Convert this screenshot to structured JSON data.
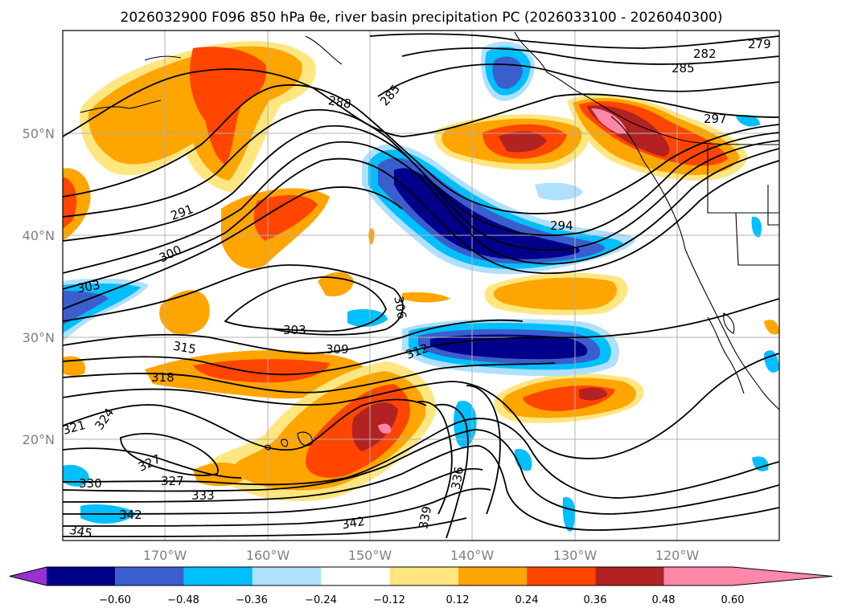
{
  "title": "2026032900 F096 850 hPa θe, river basin precipitation PC (2026033100 - 2026040300)",
  "axes": {
    "lat_labels": [
      "50°N",
      "40°N",
      "30°N",
      "20°N"
    ],
    "lon_labels": [
      "170°W",
      "160°W",
      "150°W",
      "140°W",
      "130°W",
      "120°W"
    ]
  },
  "contour_labels": [
    "279",
    "282",
    "285",
    "285",
    "288",
    "291",
    "294",
    "297",
    "300",
    "303",
    "303",
    "306",
    "309",
    "312",
    "315",
    "318",
    "321",
    "324",
    "327",
    "327",
    "330",
    "333",
    "336",
    "339",
    "342",
    "342",
    "345"
  ],
  "colorbar": {
    "ticks": [
      "−0.60",
      "−0.48",
      "−0.36",
      "−0.24",
      "−0.12",
      "0.12",
      "0.24",
      "0.36",
      "0.48",
      "0.60"
    ],
    "colors": [
      "#9b30d0",
      "#00008b",
      "#3a5fcd",
      "#00bfff",
      "#b0e0ff",
      "#ffffff",
      "#ffe680",
      "#ffa500",
      "#ff4500",
      "#b22222",
      "#ff88aa"
    ]
  }
}
